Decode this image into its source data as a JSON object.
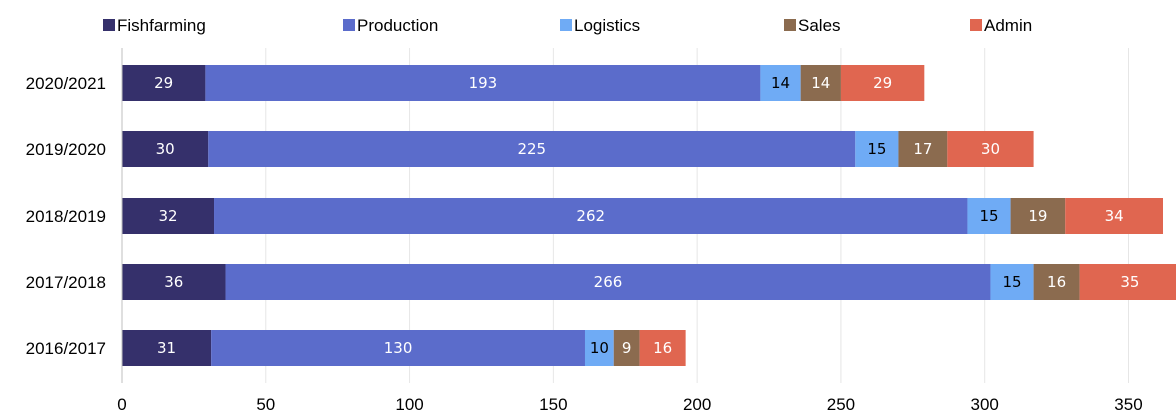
{
  "chart_data": {
    "type": "bar",
    "orientation": "horizontal",
    "stacked": true,
    "title": "",
    "xlabel": "",
    "ylabel": "",
    "categories": [
      "2020/2021",
      "2019/2020",
      "2018/2019",
      "2017/2018",
      "2016/2017"
    ],
    "series": [
      {
        "name": "Fishfarming",
        "color": "#35306b",
        "label_color": "#ffffff",
        "values": [
          29,
          30,
          32,
          36,
          31
        ]
      },
      {
        "name": "Production",
        "color": "#5b6ccb",
        "label_color": "#ffffff",
        "values": [
          193,
          225,
          262,
          266,
          130
        ]
      },
      {
        "name": "Logistics",
        "color": "#6fabf5",
        "label_color": "#000000",
        "values": [
          14,
          15,
          15,
          15,
          10
        ]
      },
      {
        "name": "Sales",
        "color": "#8b6b4f",
        "label_color": "#ffffff",
        "values": [
          14,
          17,
          19,
          16,
          9
        ]
      },
      {
        "name": "Admin",
        "color": "#e06650",
        "label_color": "#ffffff",
        "values": [
          29,
          30,
          34,
          35,
          16
        ]
      }
    ],
    "xlim": [
      0,
      362
    ],
    "xticks": [
      0,
      50,
      100,
      150,
      200,
      250,
      300,
      350
    ],
    "grid": "vertical",
    "legend_position": "top",
    "data_labels": true
  }
}
